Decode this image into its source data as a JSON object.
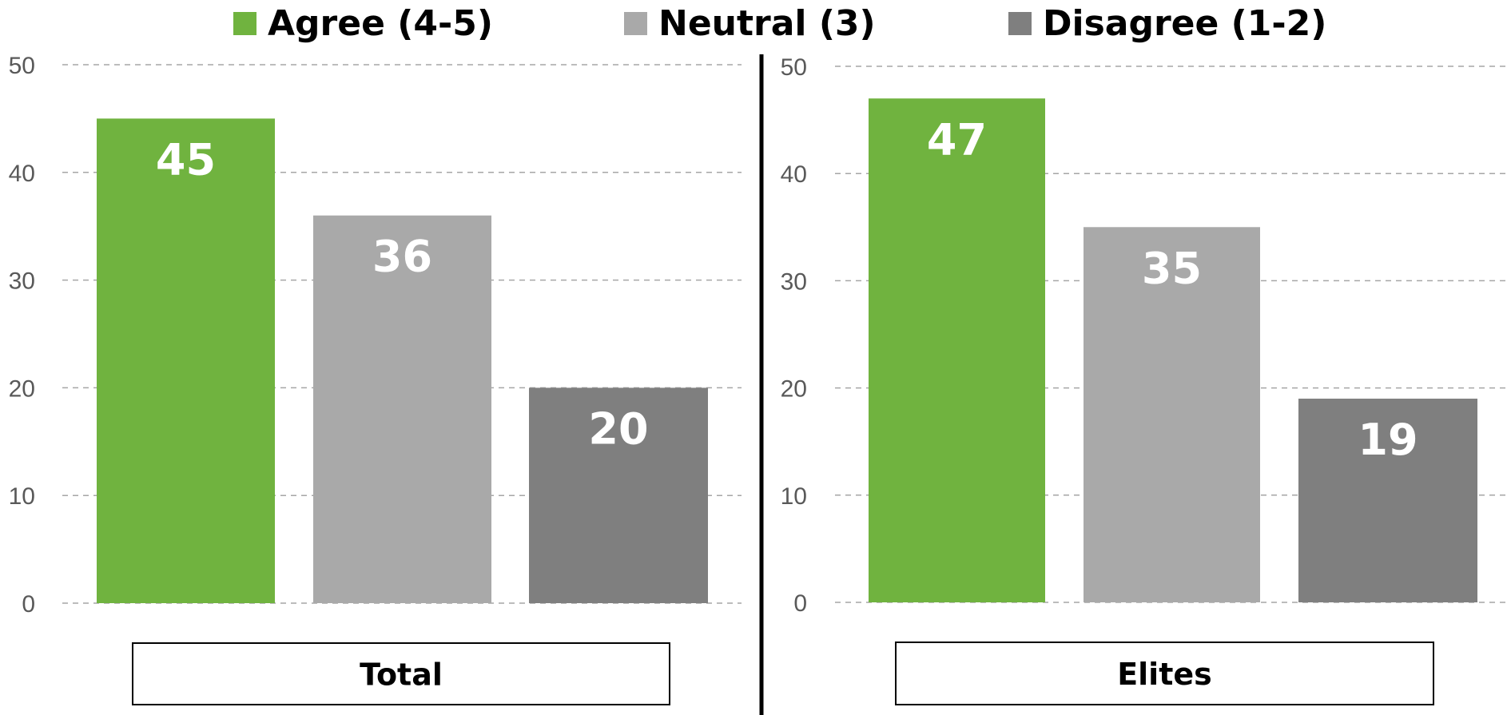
{
  "chart_data": {
    "type": "bar",
    "legend_position": "top",
    "grid": true,
    "ylim": [
      0,
      50
    ],
    "yticks": [
      0,
      10,
      20,
      30,
      40,
      50
    ],
    "series": [
      {
        "name": "Agree (4-5)",
        "color": "#70b33f"
      },
      {
        "name": "Neutral (3)",
        "color": "#a9a9a9"
      },
      {
        "name": "Disagree (1-2)",
        "color": "#7f7f7f"
      }
    ],
    "panels": [
      {
        "label": "Total",
        "values": [
          45,
          36,
          20
        ]
      },
      {
        "label": "Elites",
        "values": [
          47,
          35,
          19
        ]
      }
    ]
  }
}
